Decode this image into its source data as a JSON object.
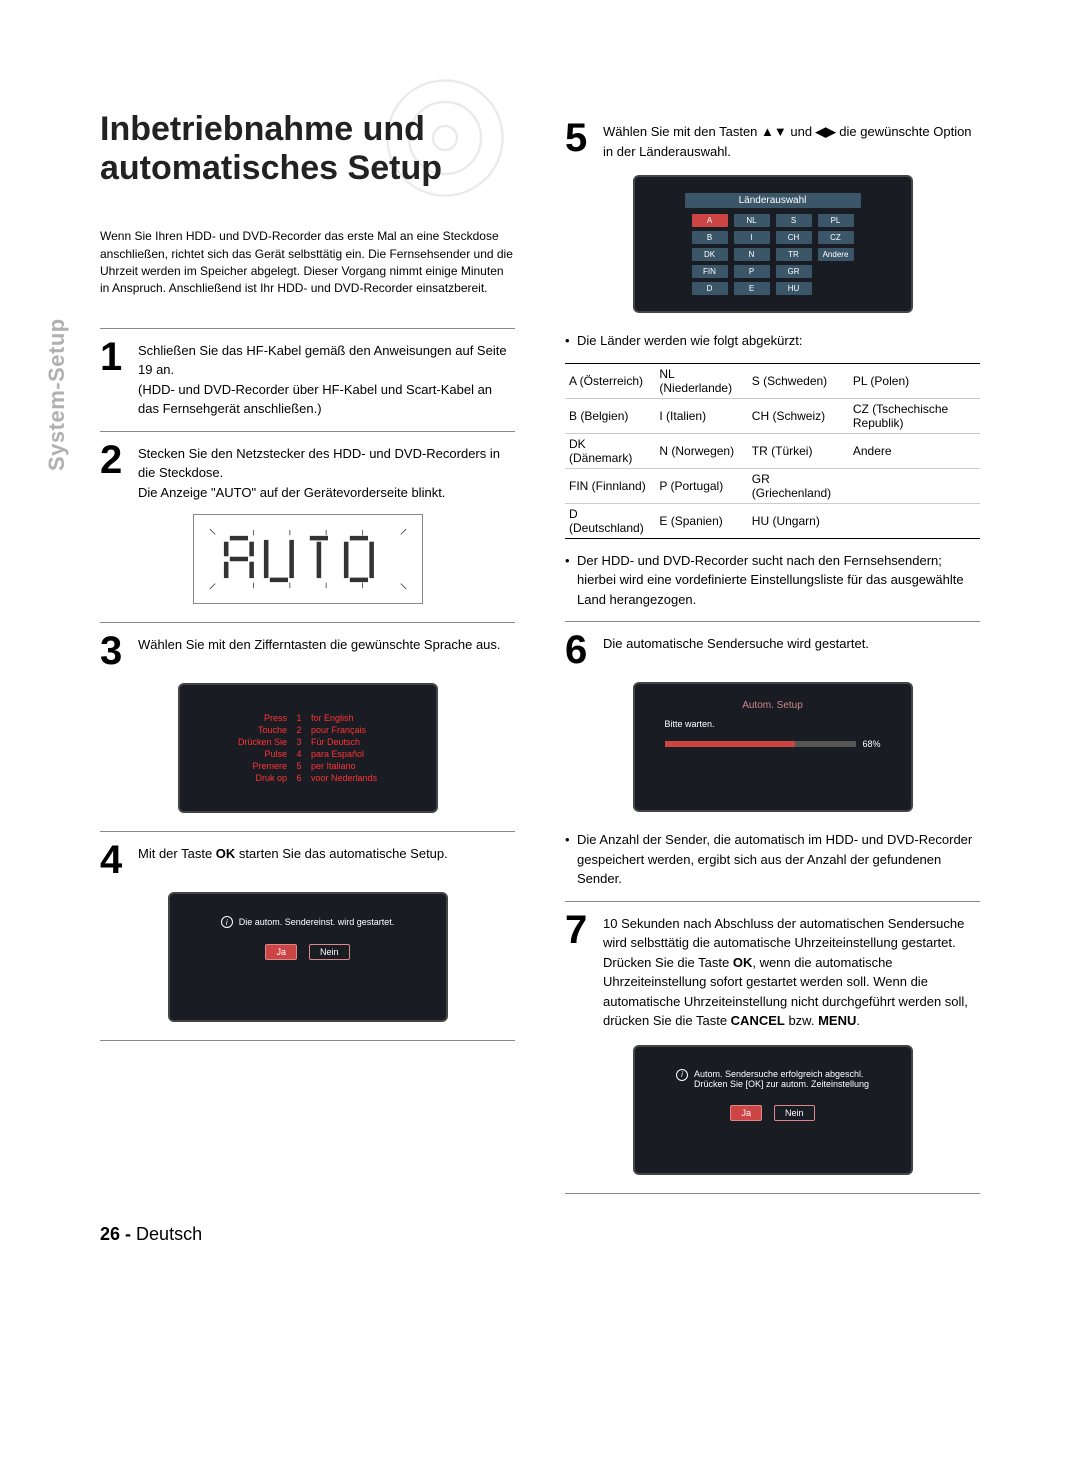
{
  "page": {
    "number": "26",
    "lang": "Deutsch",
    "side_tab": "System-Setup"
  },
  "title_line1": "Inbetriebnahme und",
  "title_line2": "automatisches Setup",
  "intro": "Wenn Sie Ihren HDD- und DVD-Recorder das erste Mal an eine Steckdose anschließen, richtet sich das Gerät selbsttätig ein. Die Fernsehsender und die Uhrzeit werden im Speicher abgelegt. Dieser Vorgang nimmt einige Minuten in Anspruch. Anschließend ist Ihr HDD- und DVD-Recorder einsatzbereit.",
  "steps": {
    "s1": "Schließen Sie das HF-Kabel gemäß den Anweisungen auf Seite 19 an.\n(HDD- und DVD-Recorder über HF-Kabel und Scart-Kabel an das Fernsehgerät anschließen.)",
    "s2a": "Stecken Sie den Netzstecker des HDD- und DVD-Recorders in die Steckdose.",
    "s2b": "Die Anzeige \"AUTO\" auf der Gerätevorderseite blinkt.",
    "s3": "Wählen Sie mit den Zifferntasten die gewünschte Sprache aus.",
    "s4a": "Mit der Taste ",
    "s4b": " starten Sie das automatische Setup.",
    "s5a": "Wählen Sie mit den Tasten ",
    "s5b": " und ",
    "s5c": " die gewünschte Option in der Länderauswahl.",
    "s6": "Die automatische Sendersuche wird gestartet.",
    "s7a": "10 Sekunden nach Abschluss der automatischen Sendersuche wird selbsttätig die automatische Uhrzeiteinstellung gestartet.",
    "s7b": "Drücken Sie die Taste ",
    "s7b2": ", wenn die automatische Uhrzeiteinstellung sofort gestartet werden soll. Wenn die automatische Uhrzeiteinstellung nicht durchgeführt werden soll, drücken Sie die Taste ",
    "s7c": " bzw. ",
    "s7d": "."
  },
  "bold": {
    "ok": "OK",
    "cancel": "CANCEL",
    "menu": "MENU"
  },
  "bullets": {
    "b1": "Die Länder werden wie folgt abgekürzt:",
    "b2": "Der HDD- und DVD-Recorder sucht nach den Fernsehsendern; hierbei wird eine vordefinierte Einstellungsliste für das ausgewählte Land herangezogen.",
    "b3": "Die Anzahl der Sender, die automatisch im HDD- und DVD-Recorder gespeichert werden, ergibt sich aus der Anzahl der gefundenen Sender."
  },
  "lang_menu": [
    [
      "Press",
      "1",
      "for English"
    ],
    [
      "Touche",
      "2",
      "pour Français"
    ],
    [
      "Drücken Sie",
      "3",
      "Für Deutsch"
    ],
    [
      "Pulse",
      "4",
      "para Español"
    ],
    [
      "Premere",
      "5",
      "per Italiano"
    ],
    [
      "Druk op",
      "6",
      "voor Nederlands"
    ]
  ],
  "osd4": {
    "text": "Die autom. Sendereinst. wird gestartet.",
    "yes": "Ja",
    "no": "Nein"
  },
  "osd5": {
    "title": "Länderauswahl",
    "cells": [
      "A",
      "NL",
      "S",
      "PL",
      "B",
      "I",
      "CH",
      "CZ",
      "DK",
      "N",
      "TR",
      "Andere",
      "FIN",
      "P",
      "GR",
      "",
      "D",
      "E",
      "HU",
      ""
    ],
    "selected_index": 0
  },
  "abbr_rows": [
    [
      "A (Österreich)",
      "NL (Niederlande)",
      "S (Schweden)",
      "PL (Polen)"
    ],
    [
      "B (Belgien)",
      "I (Italien)",
      "CH (Schweiz)",
      "CZ (Tschechische Republik)"
    ],
    [
      "DK (Dänemark)",
      "N (Norwegen)",
      "TR (Türkei)",
      "Andere"
    ],
    [
      "FIN (Finnland)",
      "P (Portugal)",
      "GR (Griechenland)",
      ""
    ],
    [
      "D (Deutschland)",
      "E (Spanien)",
      "HU (Ungarn)",
      ""
    ]
  ],
  "osd6": {
    "title": "Autom. Setup",
    "wait": "Bitte warten.",
    "pct": 68,
    "pct_label": "68%"
  },
  "osd7": {
    "line1": "Autom. Sendersuche erfolgreich abgeschl.",
    "line2": "Drücken Sie [OK] zur autom. Zeiteinstellung",
    "yes": "Ja",
    "no": "Nein"
  },
  "colors": {
    "osd_bg": "#1a1c24",
    "osd_accent": "#c44",
    "country_cell": "#3a5668",
    "side_tab": "#b0b0b0"
  }
}
